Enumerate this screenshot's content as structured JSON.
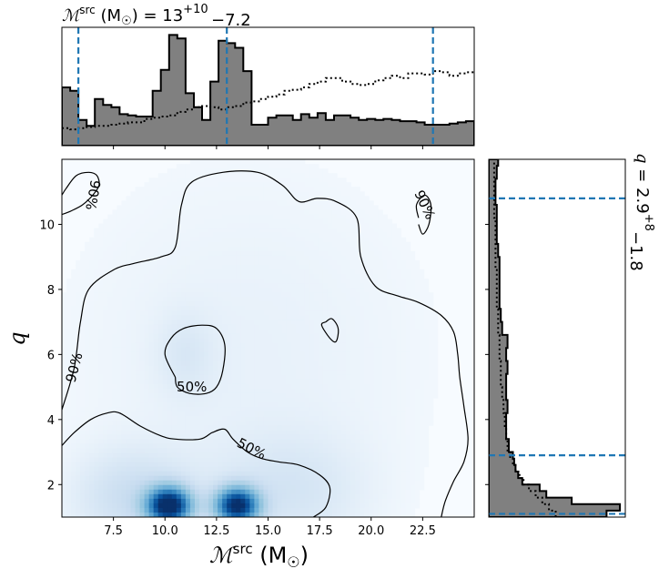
{
  "chart_data": {
    "type": "corner-plot",
    "top_title": {
      "base": "ℳ",
      "sup": "src",
      "middle": " (M",
      "sub_sun": "☉",
      "after": ") = 13",
      "err_plus": "+10",
      "err_minus": "−7.2"
    },
    "right_title": {
      "base": "q",
      "middle": " = 2.9",
      "err_plus": "+8",
      "err_minus": "−1.8"
    },
    "xlabel": {
      "base": "ℳ",
      "sup": "src",
      "middle": " (M",
      "sub_sun": "☉",
      "after": ")"
    },
    "ylabel": "q",
    "xlim": [
      5,
      25
    ],
    "ylim": [
      1,
      12
    ],
    "xticks": [
      7.5,
      10.0,
      12.5,
      15.0,
      17.5,
      20.0,
      22.5
    ],
    "xtick_labels": [
      "7.5",
      "10.0",
      "12.5",
      "15.0",
      "17.5",
      "20.0",
      "22.5"
    ],
    "yticks": [
      2,
      4,
      6,
      8,
      10
    ],
    "ytick_labels": [
      "2",
      "4",
      "6",
      "8",
      "10"
    ],
    "contour_labels": {
      "outer": "90%",
      "inner": "50%"
    },
    "mc_quantiles": [
      5.8,
      13,
      23
    ],
    "q_quantiles": [
      1.1,
      2.9,
      10.8
    ],
    "mc_hist": {
      "edges": [
        5,
        5.4,
        5.8,
        6.2,
        6.6,
        7.0,
        7.4,
        7.8,
        8.2,
        8.6,
        9.0,
        9.4,
        9.8,
        10.2,
        10.6,
        11.0,
        11.4,
        11.8,
        12.2,
        12.6,
        13.0,
        13.4,
        13.8,
        14.2,
        14.6,
        15.0,
        15.4,
        15.8,
        16.2,
        16.6,
        17.0,
        17.4,
        17.8,
        18.2,
        18.6,
        19.0,
        19.4,
        19.8,
        20.2,
        20.6,
        21.0,
        21.4,
        21.8,
        22.2,
        22.6,
        23.0,
        23.4,
        23.8,
        24.2,
        24.6,
        25.0
      ],
      "posterior": [
        0.5,
        0.47,
        0.22,
        0.17,
        0.4,
        0.35,
        0.33,
        0.27,
        0.26,
        0.25,
        0.25,
        0.47,
        0.65,
        0.95,
        0.92,
        0.45,
        0.33,
        0.22,
        0.55,
        0.9,
        0.88,
        0.84,
        0.64,
        0.18,
        0.18,
        0.24,
        0.26,
        0.26,
        0.22,
        0.27,
        0.24,
        0.28,
        0.22,
        0.26,
        0.26,
        0.24,
        0.22,
        0.23,
        0.22,
        0.23,
        0.22,
        0.21,
        0.21,
        0.2,
        0.18,
        0.18,
        0.18,
        0.19,
        0.2,
        0.21
      ],
      "prior": [
        0.15,
        0.14,
        0.15,
        0.16,
        0.17,
        0.17,
        0.18,
        0.19,
        0.2,
        0.2,
        0.23,
        0.24,
        0.25,
        0.26,
        0.29,
        0.31,
        0.33,
        0.34,
        0.33,
        0.31,
        0.33,
        0.34,
        0.37,
        0.38,
        0.4,
        0.42,
        0.44,
        0.47,
        0.48,
        0.5,
        0.53,
        0.55,
        0.58,
        0.58,
        0.55,
        0.53,
        0.52,
        0.53,
        0.56,
        0.58,
        0.6,
        0.58,
        0.62,
        0.62,
        0.61,
        0.64,
        0.63,
        0.6,
        0.62,
        0.63
      ]
    },
    "q_hist": {
      "edges": [
        1.0,
        1.2,
        1.4,
        1.6,
        1.8,
        2.0,
        2.2,
        2.4,
        2.6,
        2.8,
        3.0,
        3.4,
        3.8,
        4.2,
        4.6,
        5.0,
        5.4,
        5.8,
        6.2,
        6.6,
        7.0,
        7.4,
        7.8,
        8.2,
        8.6,
        9.0,
        9.4,
        9.8,
        10.2,
        10.6,
        11.0,
        11.4,
        11.8,
        12.0
      ],
      "posterior": [
        0.88,
        0.98,
        0.62,
        0.43,
        0.38,
        0.25,
        0.22,
        0.2,
        0.19,
        0.18,
        0.15,
        0.13,
        0.13,
        0.14,
        0.13,
        0.13,
        0.14,
        0.13,
        0.14,
        0.1,
        0.09,
        0.08,
        0.08,
        0.08,
        0.08,
        0.07,
        0.06,
        0.06,
        0.06,
        0.05,
        0.05,
        0.06,
        0.07
      ],
      "prior": [
        0.5,
        0.45,
        0.4,
        0.35,
        0.3,
        0.26,
        0.23,
        0.2,
        0.18,
        0.16,
        0.14,
        0.13,
        0.12,
        0.11,
        0.1,
        0.09,
        0.09,
        0.08,
        0.08,
        0.07,
        0.07,
        0.06,
        0.06,
        0.06,
        0.05,
        0.05,
        0.05,
        0.05,
        0.04,
        0.04,
        0.04,
        0.04,
        0.04
      ]
    },
    "density_blobs": [
      {
        "x": 10.2,
        "y": 1.35,
        "sx": 0.75,
        "sy": 0.4,
        "w": 1.0
      },
      {
        "x": 13.5,
        "y": 1.35,
        "sx": 0.75,
        "sy": 0.4,
        "w": 0.95
      },
      {
        "x": 8.5,
        "y": 1.6,
        "sx": 2.0,
        "sy": 1.0,
        "w": 0.18
      },
      {
        "x": 16.0,
        "y": 1.8,
        "sx": 2.5,
        "sy": 1.2,
        "w": 0.12
      },
      {
        "x": 11.0,
        "y": 6.0,
        "sx": 1.0,
        "sy": 0.9,
        "w": 0.08
      },
      {
        "x": 14.0,
        "y": 6.0,
        "sx": 6.0,
        "sy": 4.0,
        "w": 0.05
      }
    ],
    "contours": {
      "outer": [
        [
          5,
          4.3
        ],
        [
          5.6,
          5.6
        ],
        [
          5.9,
          7.0
        ],
        [
          6.3,
          8.0
        ],
        [
          7.5,
          8.6
        ],
        [
          8.5,
          8.8
        ],
        [
          9.8,
          9.0
        ],
        [
          10.5,
          9.3
        ],
        [
          10.8,
          10.6
        ],
        [
          11.3,
          11.3
        ],
        [
          12.8,
          11.6
        ],
        [
          14.5,
          11.6
        ],
        [
          15.7,
          11.2
        ],
        [
          16.5,
          10.7
        ],
        [
          17.4,
          10.8
        ],
        [
          18.3,
          10.7
        ],
        [
          19.3,
          10.2
        ],
        [
          19.5,
          9.0
        ],
        [
          20.2,
          8.1
        ],
        [
          21.3,
          7.8
        ],
        [
          22.3,
          7.6
        ],
        [
          23.4,
          7.2
        ],
        [
          24.0,
          6.7
        ],
        [
          24.2,
          6.0
        ],
        [
          24.3,
          5.3
        ],
        [
          24.5,
          4.4
        ],
        [
          24.7,
          3.4
        ],
        [
          24.5,
          2.7
        ],
        [
          24.0,
          2.1
        ],
        [
          23.6,
          1.5
        ],
        [
          23.4,
          1.0
        ]
      ],
      "outer_upper_left": [
        [
          5,
          10.3
        ],
        [
          5.4,
          10.4
        ],
        [
          6.0,
          10.6
        ],
        [
          6.5,
          10.9
        ],
        [
          6.8,
          11.2
        ],
        [
          6.7,
          11.5
        ],
        [
          6.3,
          11.6
        ],
        [
          5.7,
          11.5
        ],
        [
          5.2,
          11.1
        ],
        [
          5,
          10.9
        ]
      ],
      "outer_upper_right": [
        [
          22.3,
          10.2
        ],
        [
          22.2,
          10.6
        ],
        [
          22.6,
          10.9
        ],
        [
          22.9,
          10.6
        ],
        [
          22.8,
          10.0
        ],
        [
          22.5,
          9.7
        ],
        [
          22.3,
          10.0
        ]
      ],
      "island": [
        [
          17.8,
          7.0
        ],
        [
          18.1,
          7.1
        ],
        [
          18.4,
          6.8
        ],
        [
          18.3,
          6.4
        ],
        [
          18.0,
          6.5
        ],
        [
          17.6,
          6.9
        ],
        [
          17.8,
          7.0
        ]
      ],
      "inner_upper": [
        [
          10.5,
          5.3
        ],
        [
          10.0,
          6.0
        ],
        [
          10.3,
          6.5
        ],
        [
          10.9,
          6.8
        ],
        [
          11.8,
          6.9
        ],
        [
          12.5,
          6.8
        ],
        [
          12.9,
          6.3
        ],
        [
          12.8,
          5.5
        ],
        [
          12.5,
          5.0
        ],
        [
          12.0,
          4.8
        ],
        [
          11.2,
          4.8
        ],
        [
          10.6,
          5.0
        ],
        [
          10.5,
          5.3
        ]
      ],
      "inner_lower": [
        [
          5,
          3.2
        ],
        [
          5.6,
          3.6
        ],
        [
          6.4,
          4.0
        ],
        [
          7.2,
          4.2
        ],
        [
          7.8,
          4.2
        ],
        [
          8.8,
          3.8
        ],
        [
          9.8,
          3.5
        ],
        [
          10.5,
          3.4
        ],
        [
          11.7,
          3.4
        ],
        [
          12.3,
          3.6
        ],
        [
          12.9,
          3.7
        ],
        [
          13.3,
          3.4
        ],
        [
          14.0,
          3.0
        ],
        [
          14.7,
          2.8
        ],
        [
          15.5,
          2.7
        ],
        [
          16.5,
          2.6
        ],
        [
          17.5,
          2.3
        ],
        [
          18.0,
          1.9
        ],
        [
          17.8,
          1.3
        ],
        [
          17.2,
          1.0
        ]
      ]
    }
  },
  "colors": {
    "quantile_line": "#1f77b4",
    "hist_fill": "#808080",
    "contour": "#000000"
  }
}
